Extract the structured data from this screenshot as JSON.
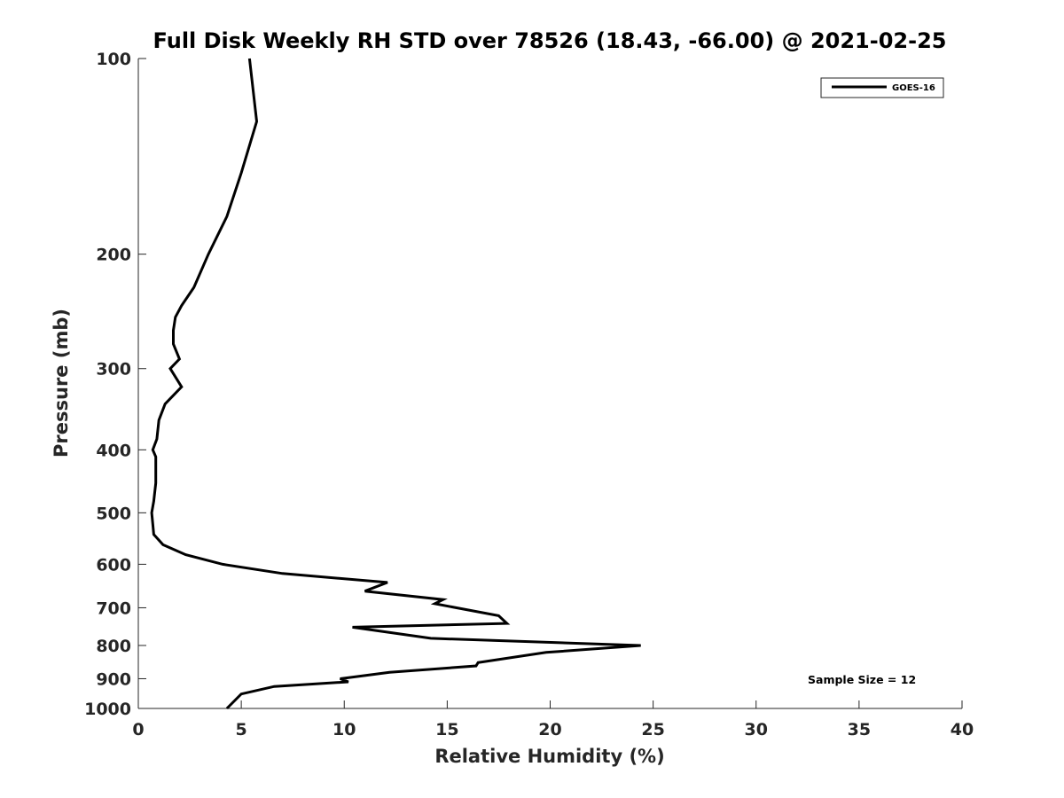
{
  "chart_data": {
    "type": "line",
    "title": "Full Disk Weekly RH STD over 78526 (18.43, -66.00) @ 2021-02-25",
    "xlabel": "Relative Humidity (%)",
    "ylabel": "Pressure (mb)",
    "xlim": [
      0,
      40
    ],
    "ylim": [
      100,
      1000
    ],
    "yscale": "log",
    "y_reversed": true,
    "grid": false,
    "x_ticks": [
      0,
      5,
      10,
      15,
      20,
      25,
      30,
      35,
      40
    ],
    "x_tick_labels": [
      "0",
      "5",
      "10",
      "15",
      "20",
      "25",
      "30",
      "35",
      "40"
    ],
    "y_ticks": [
      100,
      200,
      300,
      400,
      500,
      600,
      700,
      800,
      900,
      1000
    ],
    "y_tick_labels": [
      "100",
      "200",
      "300",
      "400",
      "500",
      "600",
      "700",
      "800",
      "900",
      "1000"
    ],
    "legend": {
      "position": "top-right",
      "entries": [
        "GOES-16"
      ]
    },
    "annotation": "Sample Size = 12",
    "series": [
      {
        "name": "GOES-16",
        "color": "#000000",
        "x": [
          5.4,
          5.75,
          5.0,
          4.3,
          3.4,
          2.7,
          2.1,
          1.8,
          1.7,
          1.7,
          2.0,
          1.55,
          2.1,
          1.3,
          1.0,
          0.9,
          0.7,
          0.85,
          0.85,
          0.75,
          0.65,
          0.7,
          0.75,
          1.2,
          2.3,
          4.1,
          7.0,
          12.1,
          11.0,
          14.8,
          14.4,
          17.5,
          17.9,
          10.4,
          14.2,
          24.4,
          19.8,
          16.5,
          16.4,
          12.2,
          9.8,
          10.2,
          6.6,
          5.0,
          4.3
        ],
        "y": [
          100,
          125,
          150,
          175,
          200,
          225,
          240,
          250,
          262,
          275,
          290,
          300,
          320,
          340,
          360,
          385,
          400,
          410,
          450,
          480,
          500,
          520,
          540,
          560,
          580,
          600,
          620,
          640,
          660,
          680,
          690,
          720,
          740,
          750,
          780,
          800,
          820,
          850,
          860,
          880,
          900,
          910,
          925,
          950,
          1000
        ]
      }
    ]
  }
}
